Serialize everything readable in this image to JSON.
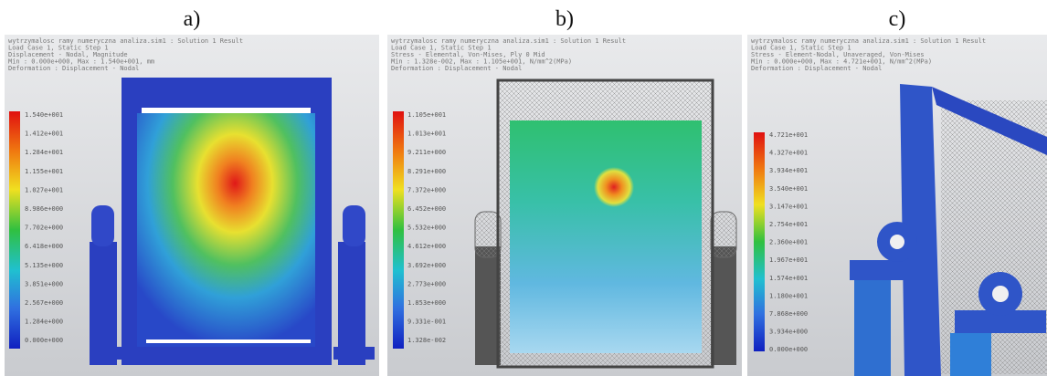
{
  "panels": [
    {
      "label": "a)",
      "header": [
        "wytrzymalosc ramy numeryczna analiza.sim1 : Solution 1 Result",
        "Load Case 1, Static Step 1",
        "Displacement - Nodal, Magnitude",
        "Min : 0.000e+000, Max : 1.540e+001, mm",
        "Deformation : Displacement - Nodal"
      ],
      "legend": [
        "1.540e+001",
        "1.412e+001",
        "1.284e+001",
        "1.155e+001",
        "1.027e+001",
        "8.986e+000",
        "7.702e+000",
        "6.418e+000",
        "5.135e+000",
        "3.851e+000",
        "2.567e+000",
        "1.284e+000",
        "0.000e+000"
      ]
    },
    {
      "label": "b)",
      "header": [
        "wytrzymalosc ramy numeryczna analiza.sim1 : Solution 1 Result",
        "Load Case 1, Static Step 1",
        "Stress - Elemental, Von-Mises, Ply 0 Mid",
        "Min : 1.328e-002, Max : 1.105e+001, N/mm^2(MPa)",
        "Deformation : Displacement - Nodal"
      ],
      "legend": [
        "1.105e+001",
        "1.013e+001",
        "9.211e+000",
        "8.291e+000",
        "7.372e+000",
        "6.452e+000",
        "5.532e+000",
        "4.612e+000",
        "3.692e+000",
        "2.773e+000",
        "1.853e+000",
        "9.331e-001",
        "1.328e-002"
      ]
    },
    {
      "label": "c)",
      "header": [
        "wytrzymalosc ramy numeryczna analiza.sim1 : Solution 1 Result",
        "Load Case 1, Static Step 1",
        "Stress - Element-Nodal, Unaveraged, Von-Mises",
        "Min : 0.000e+000, Max : 4.721e+001, N/mm^2(MPa)",
        "Deformation : Displacement - Nodal"
      ],
      "legend": [
        "4.721e+001",
        "4.327e+001",
        "3.934e+001",
        "3.540e+001",
        "3.147e+001",
        "2.754e+001",
        "2.360e+001",
        "1.967e+001",
        "1.574e+001",
        "1.180e+001",
        "7.868e+000",
        "3.934e+000",
        "0.000e+000"
      ]
    }
  ]
}
